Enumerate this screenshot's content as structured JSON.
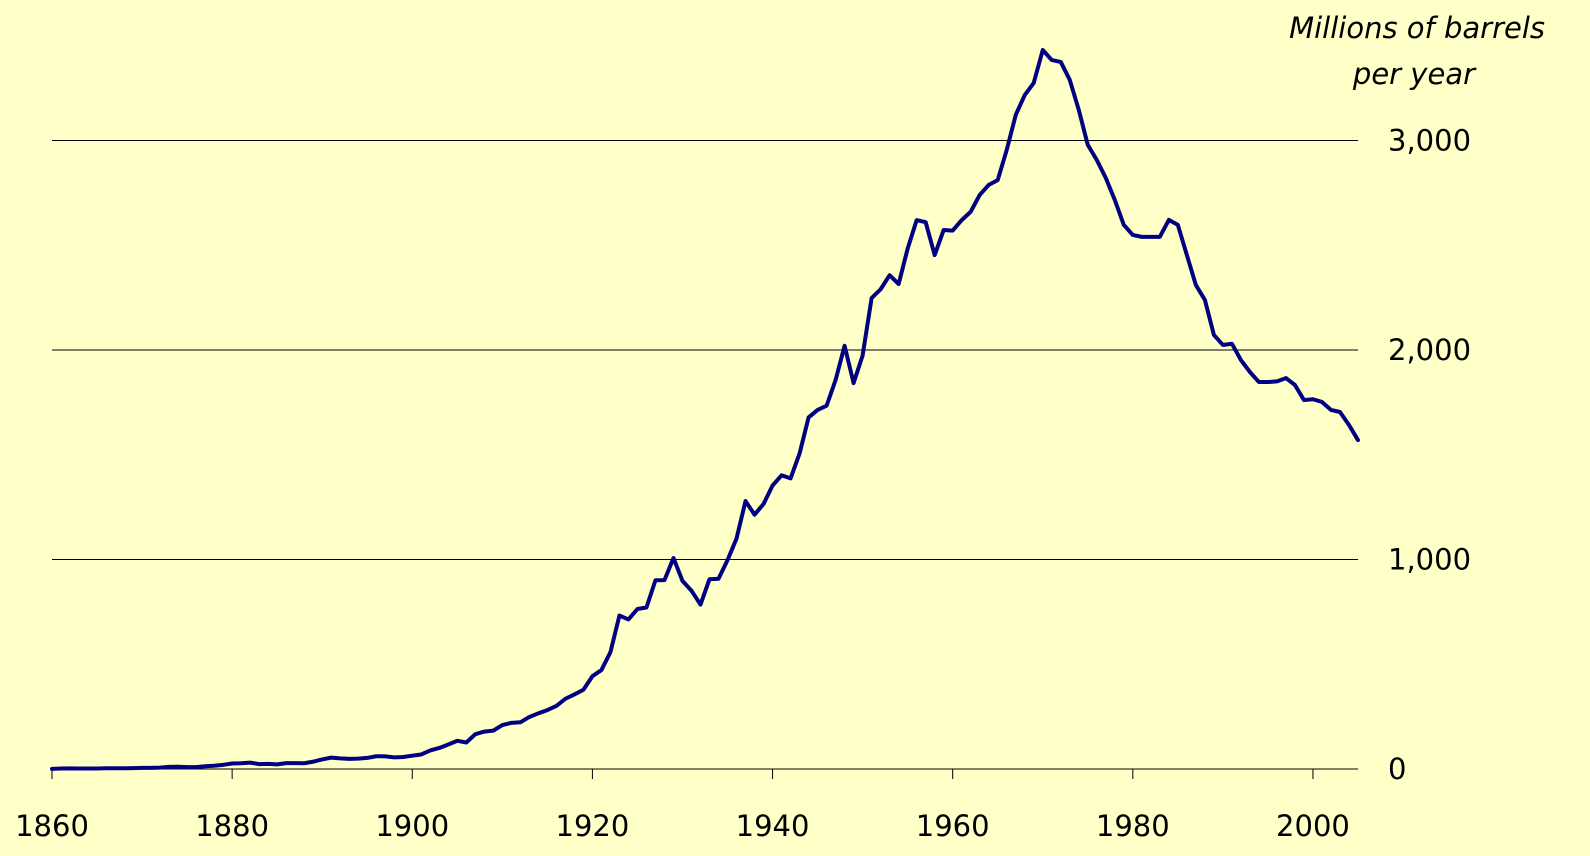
{
  "chart_data": {
    "type": "line",
    "ylabel": [
      "Millions of barrels",
      "per year"
    ],
    "x": [
      1860,
      1861,
      1862,
      1863,
      1864,
      1865,
      1866,
      1867,
      1868,
      1869,
      1870,
      1871,
      1872,
      1873,
      1874,
      1875,
      1876,
      1877,
      1878,
      1879,
      1880,
      1881,
      1882,
      1883,
      1884,
      1885,
      1886,
      1887,
      1888,
      1889,
      1890,
      1891,
      1892,
      1893,
      1894,
      1895,
      1896,
      1897,
      1898,
      1899,
      1900,
      1901,
      1902,
      1903,
      1904,
      1905,
      1906,
      1907,
      1908,
      1909,
      1910,
      1911,
      1912,
      1913,
      1914,
      1915,
      1916,
      1917,
      1918,
      1919,
      1920,
      1921,
      1922,
      1923,
      1924,
      1925,
      1926,
      1927,
      1928,
      1929,
      1930,
      1931,
      1932,
      1933,
      1934,
      1935,
      1936,
      1937,
      1938,
      1939,
      1940,
      1941,
      1942,
      1943,
      1944,
      1945,
      1946,
      1947,
      1948,
      1949,
      1950,
      1951,
      1952,
      1953,
      1954,
      1955,
      1956,
      1957,
      1958,
      1959,
      1960,
      1961,
      1962,
      1963,
      1964,
      1965,
      1966,
      1967,
      1968,
      1969,
      1970,
      1971,
      1972,
      1973,
      1974,
      1975,
      1976,
      1977,
      1978,
      1979,
      1980,
      1981,
      1982,
      1983,
      1984,
      1985,
      1986,
      1987,
      1988,
      1989,
      1990,
      1991,
      1992,
      1993,
      1994,
      1995,
      1996,
      1997,
      1998,
      1999,
      2000,
      2001,
      2002,
      2003,
      2004,
      2005
    ],
    "series": [
      {
        "color": "#000080",
        "values": [
          0.5,
          2.1,
          3,
          2.6,
          2.1,
          2.5,
          3.6,
          3.3,
          3.6,
          4.2,
          5.3,
          5.2,
          6.3,
          9.9,
          10.9,
          8.8,
          9.1,
          13.4,
          15.4,
          19.9,
          26.3,
          27.7,
          30.3,
          23.4,
          24.2,
          21.9,
          28.1,
          28.3,
          27.6,
          35.2,
          45.8,
          54.3,
          50.5,
          48.4,
          49.3,
          52.9,
          60.9,
          60.5,
          55.4,
          57.1,
          63.6,
          69.4,
          88.8,
          100.5,
          117.1,
          134.7,
          126.5,
          166.1,
          178.5,
          183.2,
          209.6,
          220.4,
          222.9,
          248.4,
          265.8,
          281.1,
          300.8,
          335.3,
          355.9,
          378.4,
          442.9,
          472.2,
          557.5,
          732.4,
          713.9,
          763.7,
          770.9,
          901.1,
          901.5,
          1007,
          898,
          851,
          785,
          906,
          908,
          997,
          1100,
          1279,
          1214,
          1265,
          1353,
          1402,
          1387,
          1506,
          1678,
          1714,
          1734,
          1857,
          2020,
          1842,
          1974,
          2248,
          2290,
          2357,
          2315,
          2484,
          2620,
          2610,
          2453,
          2573,
          2570,
          2620,
          2660,
          2740,
          2788,
          2811,
          2955,
          3122,
          3217,
          3275,
          3432,
          3384,
          3375,
          3289,
          3146,
          2979,
          2907,
          2821,
          2716,
          2597,
          2549,
          2540,
          2540,
          2540,
          2621,
          2597,
          2453,
          2310,
          2239,
          2072,
          2024,
          2030,
          1952,
          1895,
          1847,
          1847,
          1850,
          1866,
          1833,
          1761,
          1765,
          1752,
          1714,
          1704,
          1642,
          1570
        ]
      }
    ],
    "xlim": [
      1860,
      2005
    ],
    "xticks": [
      1860,
      1880,
      1900,
      1920,
      1940,
      1960,
      1980,
      2000
    ],
    "ylim": [
      0,
      3500
    ],
    "yticks": [
      0,
      {
        "value": 1000,
        "label": "1,000"
      },
      {
        "value": 2000,
        "label": "2,000"
      },
      {
        "value": 3000,
        "label": "3,000"
      }
    ],
    "grid": true
  }
}
